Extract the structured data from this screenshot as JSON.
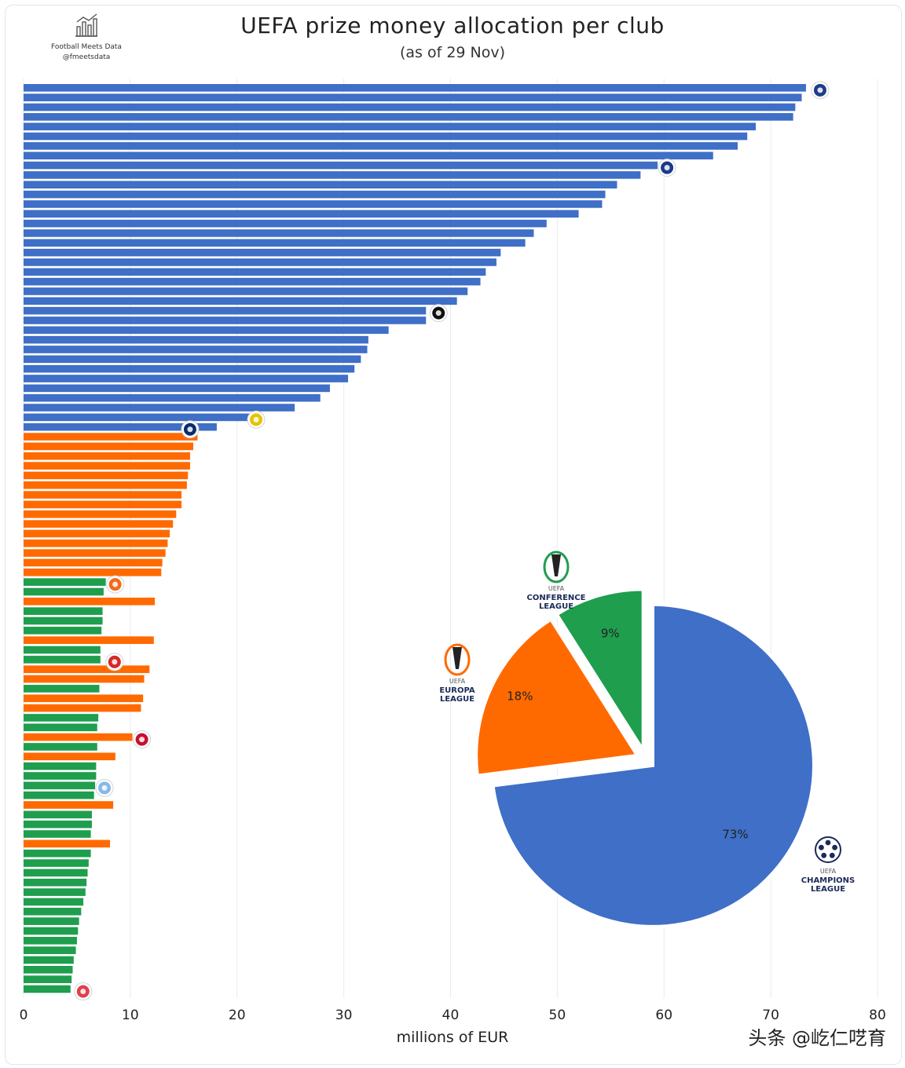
{
  "title": "UEFA prize money allocation per club",
  "subtitle": "(as of 29 Nov)",
  "brand": {
    "name": "Football Meets Data",
    "handle": "@fmeetsdata",
    "icon": "bar-chart-logo-icon"
  },
  "watermark": "头条 @屹仁呓育",
  "colors": {
    "champions_league": "#3f6fc6",
    "europa_league": "#ff6a00",
    "conference_league": "#1f9e4e",
    "grid": "#e8ecf0"
  },
  "chart_data": [
    {
      "type": "bar",
      "orientation": "horizontal",
      "xlabel": "millions of EUR",
      "xlim": [
        0,
        80
      ],
      "xticks": [
        0,
        10,
        20,
        30,
        40,
        50,
        60,
        70,
        80
      ],
      "grid": true,
      "series": [
        {
          "name": "Champions League",
          "values": [
            73.3,
            72.9,
            72.3,
            72.1,
            68.6,
            67.8,
            66.9,
            64.6,
            59.4,
            57.8,
            55.6,
            54.5,
            54.2,
            52.0,
            49.0,
            47.8,
            47.0,
            44.7,
            44.3,
            43.3,
            42.8,
            41.6,
            40.6,
            37.7,
            37.7,
            34.2,
            32.3,
            32.2,
            31.6,
            31.0,
            30.4,
            28.7,
            27.8,
            25.4,
            21.2,
            18.1
          ]
        },
        {
          "name": "Europa League",
          "values": [
            16.3,
            15.9,
            15.6,
            15.6,
            15.4,
            15.3,
            14.8,
            14.8,
            14.3,
            14.0,
            13.7,
            13.5,
            13.3,
            13.0,
            12.9,
            12.3,
            12.2,
            11.8,
            11.3,
            11.2,
            11.0,
            10.2,
            8.6,
            8.4,
            8.1
          ]
        },
        {
          "name": "Conference League",
          "values": [
            7.7,
            7.5,
            7.4,
            7.4,
            7.3,
            7.2,
            7.2,
            7.1,
            7.0,
            6.9,
            6.9,
            6.8,
            6.8,
            6.7,
            6.6,
            6.4,
            6.4,
            6.3,
            6.3,
            6.1,
            6.0,
            5.9,
            5.8,
            5.6,
            5.4,
            5.2,
            5.1,
            5.0,
            4.9,
            4.7,
            4.6,
            4.5,
            4.4
          ]
        }
      ],
      "bar_order": "CL x36, EL x15, CF x2, EL x1, CF x3, EL x1, CF x2, EL x2, CF x1, EL x2, CF x2, EL x1, CF x1, EL x1, CF x4, EL x1, CF x3, EL x1, CF x15",
      "club_icons": [
        "psg-crest-icon",
        "inter-crest-icon",
        "newcastle-crest-icon",
        "young-boys-crest-icon",
        "fenerbahce-crest-icon",
        "shakhtar-crest-icon",
        "twente-crest-icon",
        "fcsb-crest-icon",
        "malmo-crest-icon",
        "small-club-crest-icon"
      ]
    },
    {
      "type": "pie",
      "slices": [
        {
          "name": "Champions League",
          "label": "CHAMPIONS LEAGUE",
          "value": 73,
          "text": "73%",
          "icon": "champions-league-logo-icon"
        },
        {
          "name": "Europa League",
          "label": "EUROPA LEAGUE",
          "value": 18,
          "text": "18%",
          "icon": "europa-league-logo-icon"
        },
        {
          "name": "Conference League",
          "label": "CONFERENCE LEAGUE",
          "value": 9,
          "text": "9%",
          "icon": "conference-league-logo-icon"
        }
      ]
    }
  ]
}
